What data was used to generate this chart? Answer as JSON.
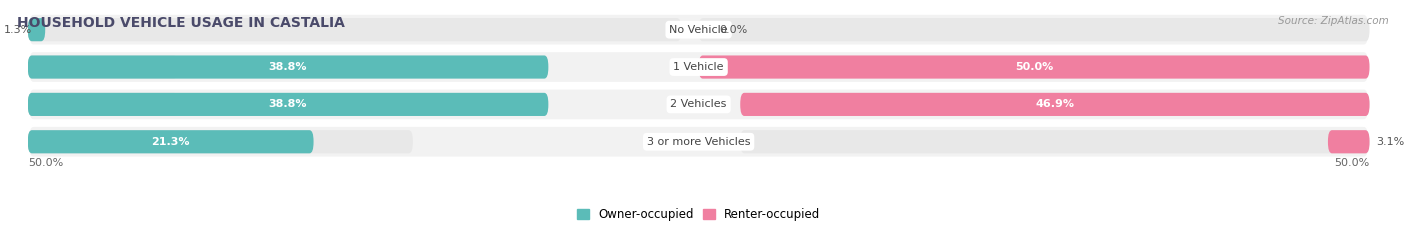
{
  "title": "HOUSEHOLD VEHICLE USAGE IN CASTALIA",
  "source": "Source: ZipAtlas.com",
  "categories": [
    "No Vehicle",
    "1 Vehicle",
    "2 Vehicles",
    "3 or more Vehicles"
  ],
  "owner_values": [
    1.3,
    38.8,
    38.8,
    21.3
  ],
  "renter_values": [
    0.0,
    50.0,
    46.9,
    3.1
  ],
  "owner_color": "#5bbcb8",
  "renter_color": "#f07fa0",
  "bar_bg_color": "#e8e8e8",
  "row_bg_color": "#f2f2f2",
  "max_value": 50.0,
  "legend_labels": [
    "Owner-occupied",
    "Renter-occupied"
  ],
  "bottom_left_label": "50.0%",
  "bottom_right_label": "50.0%",
  "title_fontsize": 10,
  "label_fontsize": 8,
  "category_fontsize": 8,
  "bar_height": 0.62,
  "inside_threshold": 8.0
}
